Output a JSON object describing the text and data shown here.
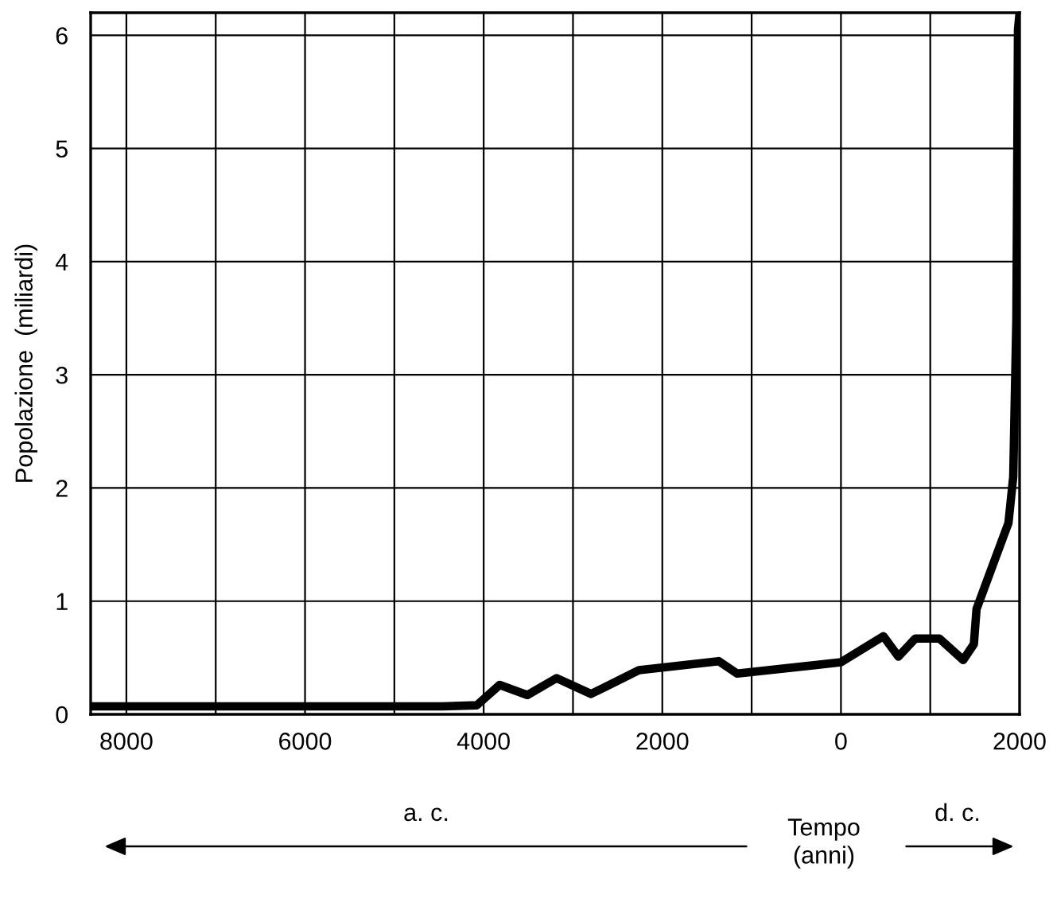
{
  "chart_data": {
    "type": "line",
    "ylabel": "Popolazione  (miliardi)",
    "x": [
      -8400,
      -4464,
      -4077,
      -3821,
      -3512,
      -3184,
      -2798,
      -2262,
      -1369,
      -1161,
      0,
      476,
      643,
      833,
      1101,
      1369,
      1488,
      1518,
      1696,
      1875,
      1929,
      1964,
      1982,
      2000
    ],
    "series": [
      {
        "color": "#000000",
        "values": [
          0.07,
          0.07,
          0.08,
          0.26,
          0.17,
          0.32,
          0.18,
          0.39,
          0.47,
          0.36,
          0.46,
          0.69,
          0.51,
          0.67,
          0.67,
          0.48,
          0.62,
          0.93,
          1.31,
          1.69,
          2.1,
          3.5,
          6.05,
          6.2
        ]
      }
    ],
    "xlim": [
      -8400,
      2000
    ],
    "xticks": [
      {
        "value": -8000,
        "label": "8000"
      },
      {
        "value": -7000,
        "label": null
      },
      {
        "value": -6000,
        "label": "6000"
      },
      {
        "value": -5000,
        "label": null
      },
      {
        "value": -4000,
        "label": "4000"
      },
      {
        "value": -3000,
        "label": null
      },
      {
        "value": -2000,
        "label": "2000"
      },
      {
        "value": -1000,
        "label": null
      },
      0,
      {
        "value": 1000,
        "label": null
      },
      2000
    ],
    "ylim": [
      0,
      6.2
    ],
    "yticks": [
      0,
      1,
      2,
      3,
      4,
      5,
      6
    ],
    "grid": true,
    "legend": false,
    "marker": "none",
    "line_style": "solid",
    "annotations": [
      "a. c.",
      "Tempo\n(anni)",
      "d. c."
    ]
  }
}
